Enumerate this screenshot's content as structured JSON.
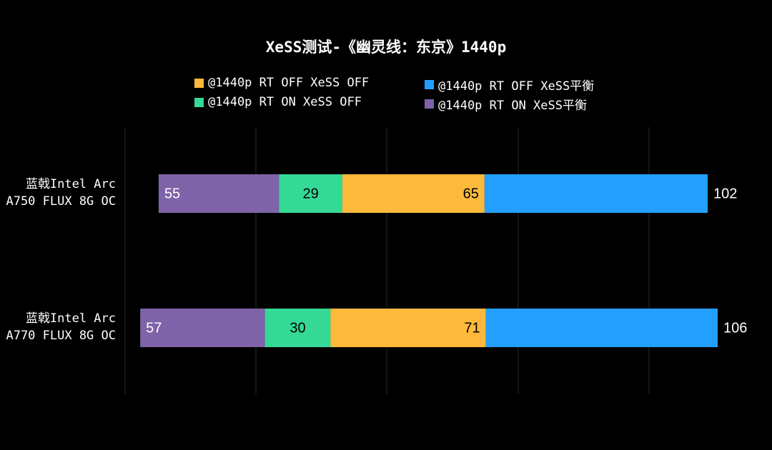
{
  "chart_data": {
    "type": "bar",
    "stacked": true,
    "orientation": "horizontal",
    "title": "XeSS测试-《幽灵线：东京》1440p",
    "categories": [
      "蓝戟Intel Arc\nA750 FLUX 8G OC",
      "蓝戟Intel Arc\nA770 FLUX 8G OC"
    ],
    "legend": [
      {
        "name": "@1440p RT OFF XeSS OFF",
        "color": "#FDB93C"
      },
      {
        "name": "@1440p RT OFF XeSS平衡",
        "color": "#23A0FF"
      },
      {
        "name": "@1440p RT ON XeSS OFF",
        "color": "#35D996"
      },
      {
        "name": "@1440p RT ON XeSS平衡",
        "color": "#7F63A8"
      }
    ],
    "series": [
      {
        "name": "@1440p RT ON XeSS平衡",
        "color": "#7F63A8",
        "values": [
          55,
          57
        ]
      },
      {
        "name": "@1440p RT ON XeSS OFF",
        "color": "#35D996",
        "values": [
          29,
          30
        ]
      },
      {
        "name": "@1440p RT OFF XeSS OFF",
        "color": "#FDB93C",
        "values": [
          65,
          71
        ]
      },
      {
        "name": "@1440p RT OFF XeSS平衡",
        "color": "#23A0FF",
        "values": [
          102,
          106
        ]
      }
    ],
    "legend_position": "top",
    "grid": true
  }
}
